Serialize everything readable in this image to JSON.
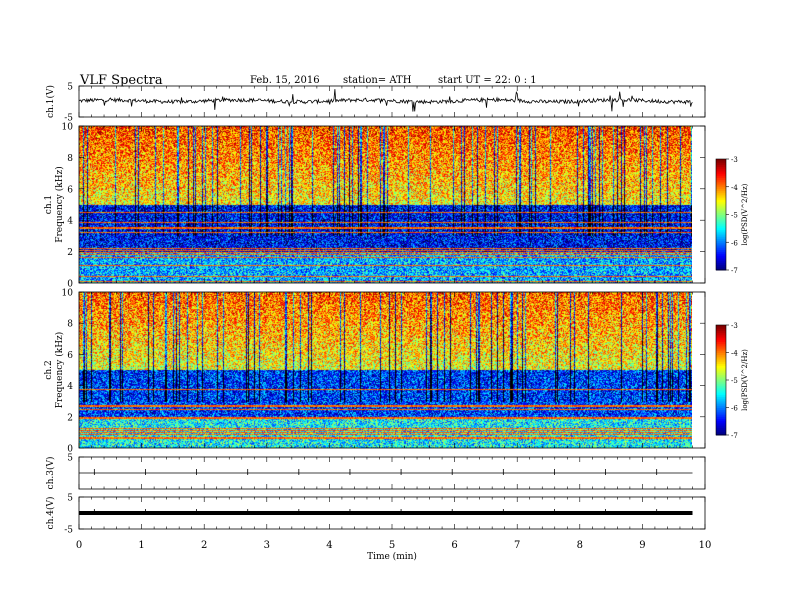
{
  "header": {
    "title": "VLF  Spectra",
    "date": "Feb. 15, 2016",
    "station": "station= ATH",
    "start": "start  UT  =   22: 0  : 1"
  },
  "chart_data": [
    {
      "type": "line",
      "panel": "ch1-waveform",
      "ylabel": "ch.1(V)",
      "ylim": [
        -5,
        5
      ],
      "y_ticks": [
        "5",
        "-5"
      ],
      "series": [
        {
          "name": "",
          "level": 0.2
        }
      ]
    },
    {
      "type": "heatmap",
      "panel": "ch1-spectrogram",
      "ylabel": "Frequency (kHz)",
      "ylabel2": "ch.1",
      "ylim": [
        0,
        10
      ],
      "y_ticks": [
        "0",
        "2",
        "4",
        "6",
        "8",
        "10"
      ],
      "colorbar": {
        "label": "log(PSD(V^2/Hz)",
        "range": [
          -7,
          -3
        ],
        "ticks": [
          "-3",
          "-4",
          "-5",
          "-6",
          "-7"
        ]
      },
      "description_values": {
        "band_above_5kHz_log_psd": -4.5,
        "band_2_to_5kHz_log_psd": -6.5,
        "band_below_2kHz_log_psd": -5.8
      }
    },
    {
      "type": "heatmap",
      "panel": "ch2-spectrogram",
      "ylabel": "Frequency (kHz)",
      "ylabel2": "ch.2",
      "ylim": [
        0,
        10
      ],
      "y_ticks": [
        "0",
        "2",
        "4",
        "6",
        "8",
        "10"
      ],
      "colorbar": {
        "label": "log(PSD(V^2/Hz)",
        "range": [
          -7,
          -3
        ],
        "ticks": [
          "-3",
          "-4",
          "-5",
          "-6",
          "-7"
        ]
      },
      "description_values": {
        "band_above_5kHz_log_psd": -4.6,
        "band_2_to_5kHz_log_psd": -6.3,
        "band_below_2kHz_log_psd": -5.5
      }
    },
    {
      "type": "line",
      "panel": "ch3-waveform",
      "ylabel": "ch.3(V)",
      "ylim": [
        -5,
        5
      ],
      "y_ticks": [
        "5"
      ],
      "series": [
        {
          "name": "",
          "level": 0
        }
      ]
    },
    {
      "type": "line",
      "panel": "ch4-waveform",
      "ylabel": "ch.4(V)",
      "ylim": [
        -5,
        5
      ],
      "y_ticks": [
        "5",
        "-5"
      ],
      "series": [
        {
          "name": "",
          "level": 0
        }
      ]
    }
  ],
  "x_axis": {
    "label": "Time  (min)",
    "xlim": [
      0,
      10
    ],
    "ticks": [
      "0",
      "1",
      "2",
      "3",
      "4",
      "5",
      "6",
      "7",
      "8",
      "9",
      "10"
    ],
    "data_end": 9.8
  }
}
